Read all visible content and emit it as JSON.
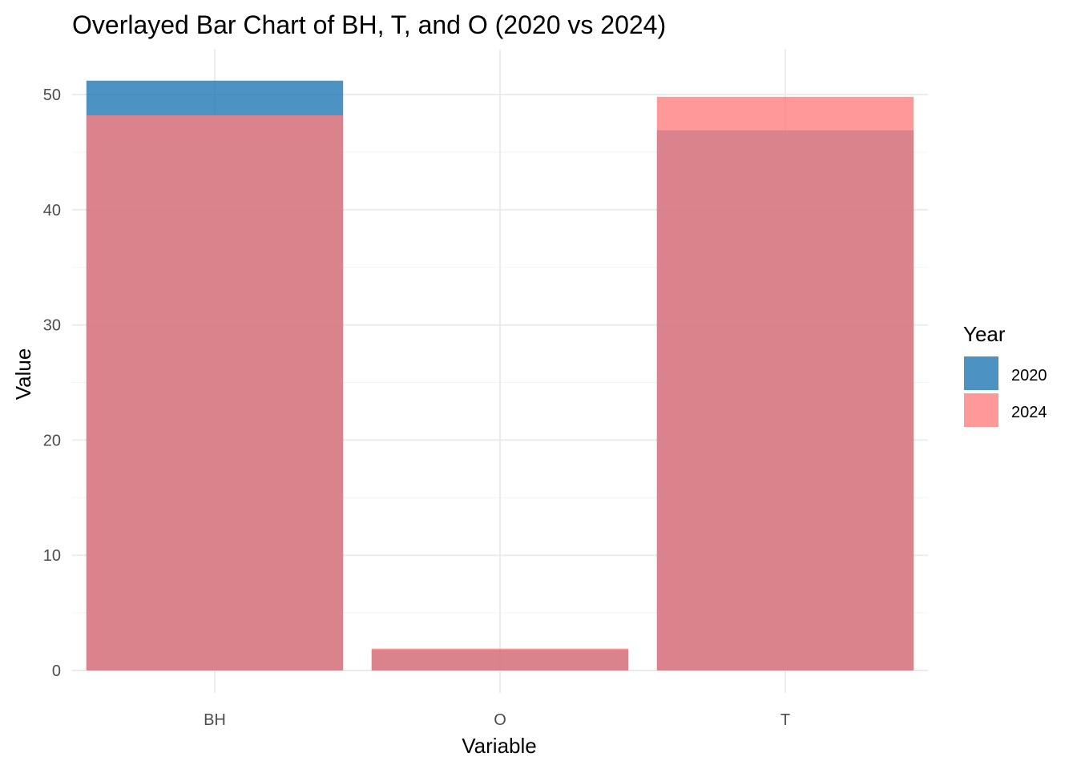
{
  "chart_data": {
    "type": "bar",
    "title": "Overlayed Bar Chart of BH, T, and O (2020 vs 2024)",
    "xlabel": "Variable",
    "ylabel": "Value",
    "categories": [
      "BH",
      "O",
      "T"
    ],
    "series": [
      {
        "name": "2020",
        "values": [
          51.2,
          1.8,
          46.9
        ],
        "color": "#1F77B4"
      },
      {
        "name": "2024",
        "values": [
          48.2,
          1.9,
          49.8
        ],
        "color": "#FF7F7F"
      }
    ],
    "overlay_color": "#93586F",
    "ylim": [
      0,
      54
    ],
    "yticks": [
      0,
      10,
      20,
      30,
      40,
      50
    ],
    "grid": true,
    "legend": {
      "title": "Year",
      "position": "right"
    }
  }
}
